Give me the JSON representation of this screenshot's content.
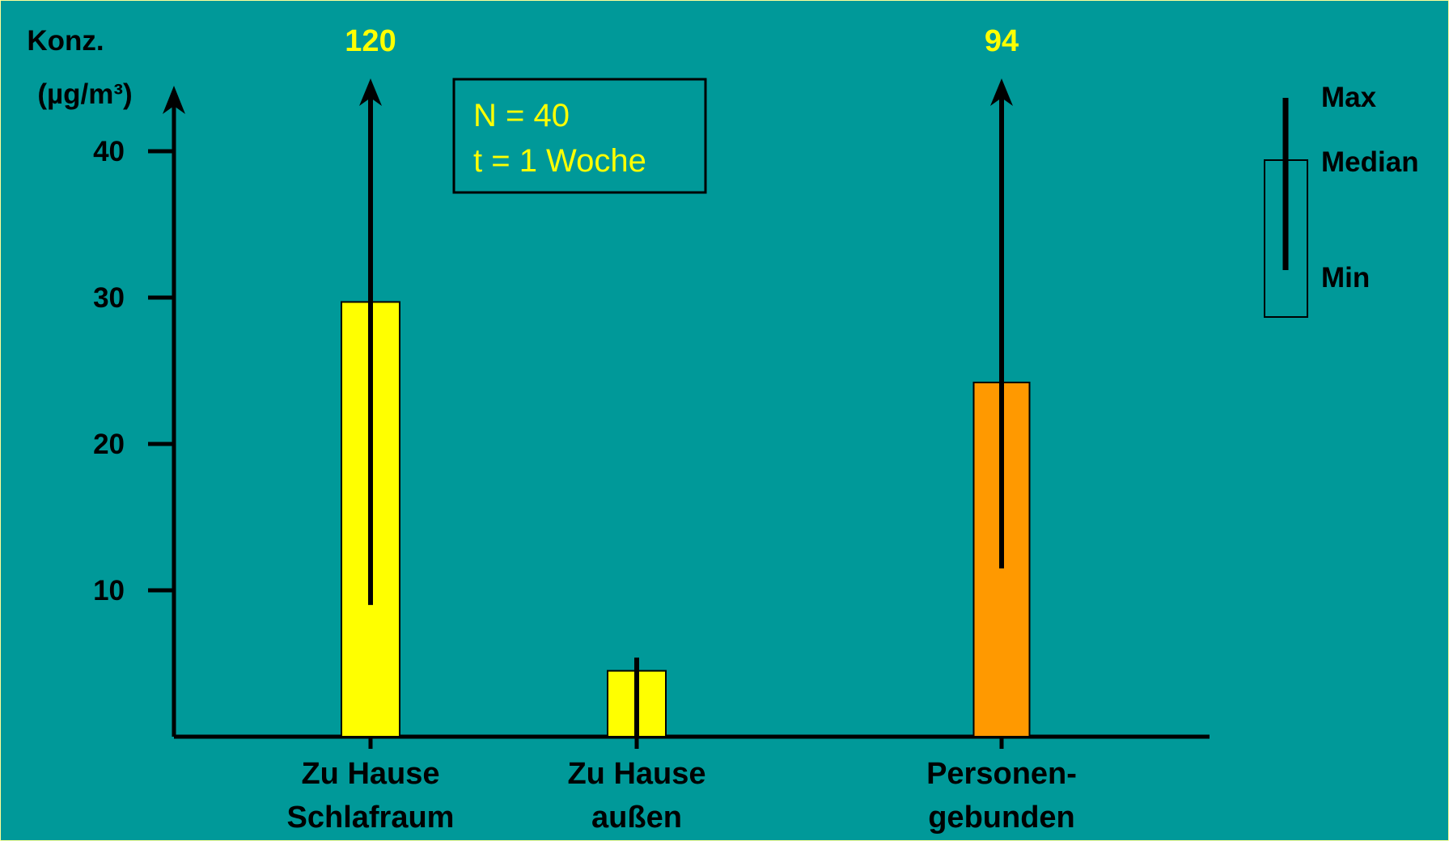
{
  "colors": {
    "background": "#009999",
    "border": "#FFFF99",
    "bar_yellow": "#FFFF00",
    "bar_orange": "#FF9900",
    "overflow_text": "#FFFF00",
    "note_text": "#FFFF00"
  },
  "chart_data": {
    "type": "bar",
    "ylabel_line1": "Konz.",
    "ylabel_line2": "(µg/m³)",
    "ylim": [
      0,
      45
    ],
    "yticks": [
      10,
      20,
      30,
      40
    ],
    "ytick_labels": [
      "10",
      "20",
      "30",
      "40"
    ],
    "grid": false,
    "categories": [
      {
        "line1": "Zu Hause",
        "line2": "Schlafraum"
      },
      {
        "line1": "Zu Hause",
        "line2": "außen"
      },
      {
        "line1": "Personen-",
        "line2": "gebunden"
      }
    ],
    "medians": [
      29.7,
      4.5,
      24.2
    ],
    "mins": [
      9,
      0,
      11.5
    ],
    "maxs": [
      120,
      5.4,
      94
    ],
    "max_off_scale_labels": [
      "120",
      "",
      "94"
    ],
    "bar_colors": [
      "#FFFF00",
      "#FFFF00",
      "#FF9900"
    ],
    "annotation": {
      "line1": "N = 40",
      "line2": "t = 1 Woche"
    },
    "legend": {
      "position": "top-right",
      "max_label": "Max",
      "median_label": "Median",
      "min_label": "Min"
    }
  }
}
